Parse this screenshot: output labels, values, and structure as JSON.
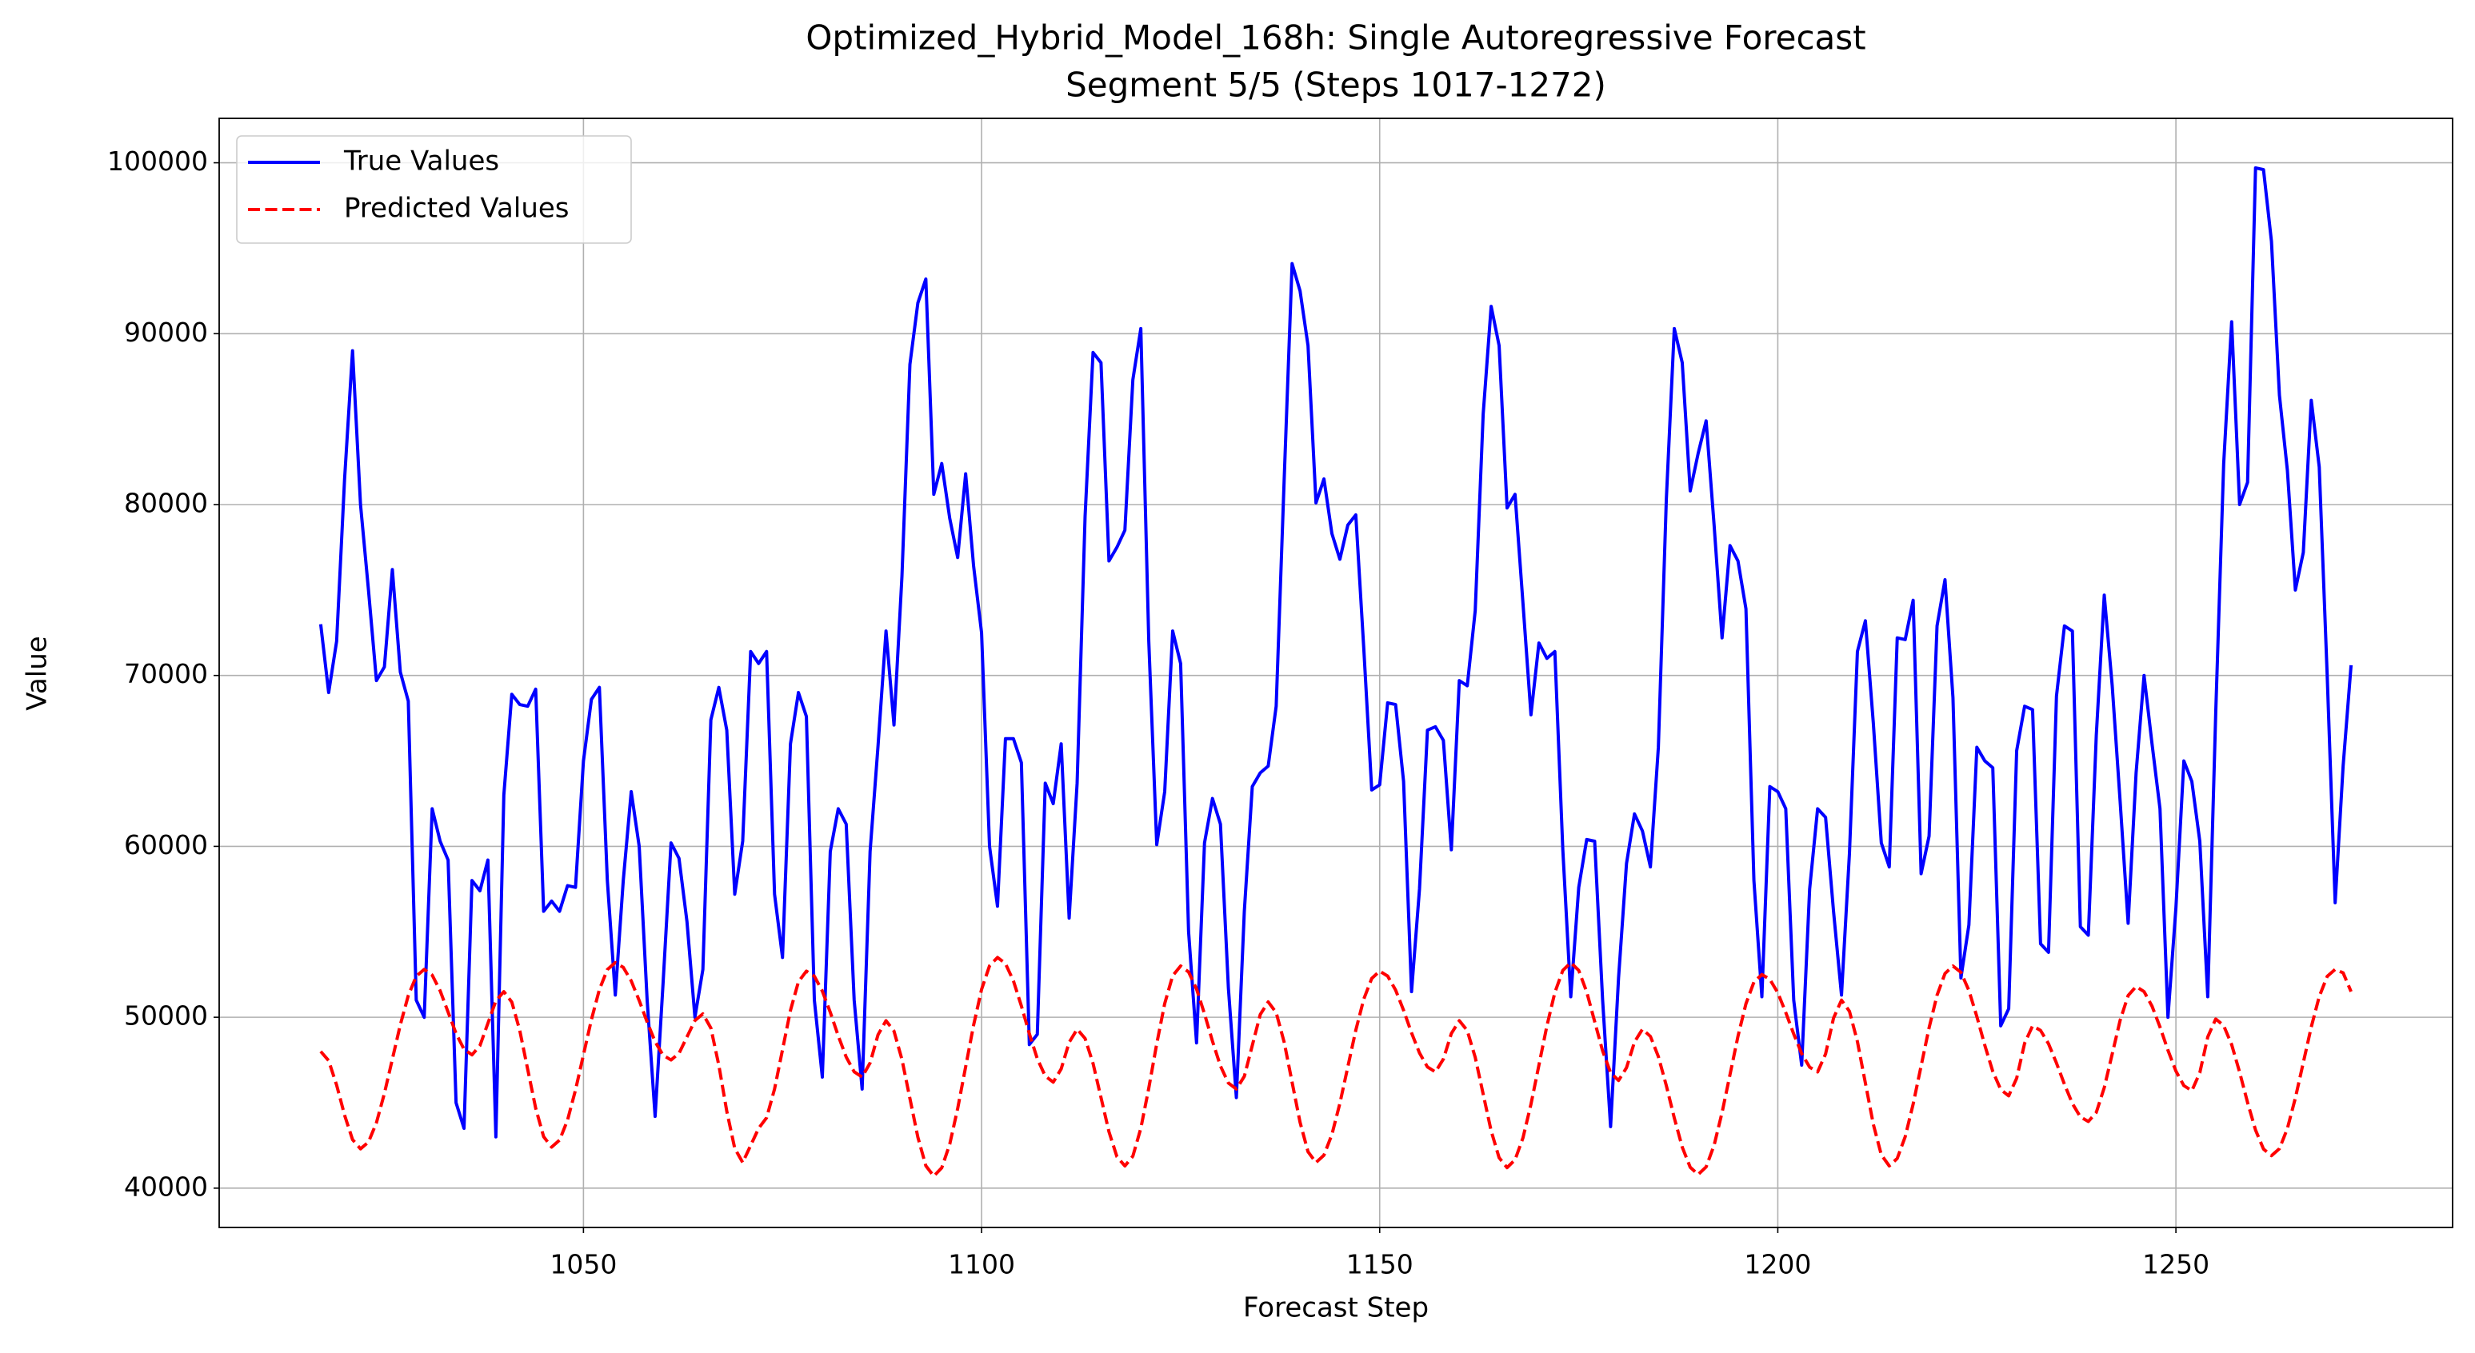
{
  "chart_data": {
    "type": "line",
    "title": "Optimized_Hybrid_Model_168h: Single Autoregressive Forecast",
    "subtitle": "Segment 5/5 (Steps 1017-1272)",
    "xlabel": "Forecast Step",
    "ylabel": "Value",
    "xlim": [
      1004.25,
      1284.75
    ],
    "xticks": [
      1050,
      1100,
      1150,
      1200,
      1250
    ],
    "ylim": [
      37700,
      102600
    ],
    "yticks": [
      40000,
      50000,
      60000,
      70000,
      80000,
      90000,
      100000
    ],
    "grid": true,
    "legend": "upper left",
    "x": [
      1017,
      1018,
      1019,
      1020,
      1021,
      1022,
      1023,
      1024,
      1025,
      1026,
      1027,
      1028,
      1029,
      1030,
      1031,
      1032,
      1033,
      1034,
      1035,
      1036,
      1037,
      1038,
      1039,
      1040,
      1041,
      1042,
      1043,
      1044,
      1045,
      1046,
      1047,
      1048,
      1049,
      1050,
      1051,
      1052,
      1053,
      1054,
      1055,
      1056,
      1057,
      1058,
      1059,
      1060,
      1061,
      1062,
      1063,
      1064,
      1065,
      1066,
      1067,
      1068,
      1069,
      1070,
      1071,
      1072,
      1073,
      1074,
      1075,
      1076,
      1077,
      1078,
      1079,
      1080,
      1081,
      1082,
      1083,
      1084,
      1085,
      1086,
      1087,
      1088,
      1089,
      1090,
      1091,
      1092,
      1093,
      1094,
      1095,
      1096,
      1097,
      1098,
      1099,
      1100,
      1101,
      1102,
      1103,
      1104,
      1105,
      1106,
      1107,
      1108,
      1109,
      1110,
      1111,
      1112,
      1113,
      1114,
      1115,
      1116,
      1117,
      1118,
      1119,
      1120,
      1121,
      1122,
      1123,
      1124,
      1125,
      1126,
      1127,
      1128,
      1129,
      1130,
      1131,
      1132,
      1133,
      1134,
      1135,
      1136,
      1137,
      1138,
      1139,
      1140,
      1141,
      1142,
      1143,
      1144,
      1145,
      1146,
      1147,
      1148,
      1149,
      1150,
      1151,
      1152,
      1153,
      1154,
      1155,
      1156,
      1157,
      1158,
      1159,
      1160,
      1161,
      1162,
      1163,
      1164,
      1165,
      1166,
      1167,
      1168,
      1169,
      1170,
      1171,
      1172,
      1173,
      1174,
      1175,
      1176,
      1177,
      1178,
      1179,
      1180,
      1181,
      1182,
      1183,
      1184,
      1185,
      1186,
      1187,
      1188,
      1189,
      1190,
      1191,
      1192,
      1193,
      1194,
      1195,
      1196,
      1197,
      1198,
      1199,
      1200,
      1201,
      1202,
      1203,
      1204,
      1205,
      1206,
      1207,
      1208,
      1209,
      1210,
      1211,
      1212,
      1213,
      1214,
      1215,
      1216,
      1217,
      1218,
      1219,
      1220,
      1221,
      1222,
      1223,
      1224,
      1225,
      1226,
      1227,
      1228,
      1229,
      1230,
      1231,
      1232,
      1233,
      1234,
      1235,
      1236,
      1237,
      1238,
      1239,
      1240,
      1241,
      1242,
      1243,
      1244,
      1245,
      1246,
      1247,
      1248,
      1249,
      1250,
      1251,
      1252,
      1253,
      1254,
      1255,
      1256,
      1257,
      1258,
      1259,
      1260,
      1261,
      1262,
      1263,
      1264,
      1265,
      1266,
      1267,
      1268,
      1269,
      1270,
      1271,
      1272
    ],
    "series": [
      {
        "name": "True Values",
        "color": "#0000ff",
        "dash": false,
        "values": [
          73000,
          69000,
          72000,
          81500,
          89000,
          80000,
          75000,
          69700,
          70500,
          76200,
          70200,
          68500,
          51000,
          50000,
          62200,
          60300,
          59200,
          45000,
          43500,
          58000,
          57400,
          59200,
          43000,
          63000,
          68900,
          68300,
          68200,
          69200,
          56200,
          56800,
          56200,
          57700,
          57600,
          65000,
          68600,
          69300,
          58000,
          51300,
          58000,
          63200,
          60000,
          51000,
          44200,
          52000,
          60200,
          59300,
          55600,
          50000,
          52800,
          67400,
          69300,
          66800,
          57200,
          60300,
          71400,
          70700,
          71400,
          57200,
          53500,
          66000,
          69000,
          67600,
          51000,
          46500,
          59700,
          62200,
          61300,
          51000,
          45800,
          59700,
          65900,
          72600,
          67100,
          75800,
          88200,
          91800,
          93200,
          80600,
          82400,
          79200,
          76900,
          81800,
          76400,
          72500,
          60000,
          56500,
          66300,
          66300,
          64900,
          48400,
          49000,
          63700,
          62500,
          66000,
          55800,
          63700,
          79300,
          88900,
          88300,
          76700,
          77500,
          78500,
          87300,
          90300,
          72000,
          60100,
          63200,
          72600,
          70700,
          55000,
          48500,
          60200,
          62800,
          61300,
          51700,
          45300,
          56200,
          63500,
          64300,
          64700,
          68200,
          81400,
          94100,
          92500,
          89300,
          80100,
          81500,
          78300,
          76800,
          78800,
          79400,
          71600,
          63300,
          63600,
          68400,
          68300,
          63800,
          51500,
          57500,
          66800,
          67000,
          66200,
          59800,
          69700,
          69400,
          73800,
          85300,
          91600,
          89300,
          79800,
          80600,
          74200,
          67700,
          71900,
          71000,
          71400,
          59800,
          51200,
          57600,
          60400,
          60300,
          51000,
          43600,
          52300,
          59000,
          61900,
          60900,
          58800,
          65800,
          80300,
          90300,
          88300,
          80800,
          83000,
          84900,
          78800,
          72200,
          77600,
          76700,
          73900,
          58000,
          51200,
          63500,
          63200,
          62200,
          51000,
          47200,
          57500,
          62200,
          61700,
          56200,
          51300,
          59600,
          71400,
          73200,
          67200,
          60200,
          58800,
          72200,
          72100,
          74400,
          58400,
          60600,
          72900,
          75600,
          68700,
          52300,
          55400,
          65800,
          65000,
          64600,
          49500,
          50500,
          65600,
          68200,
          68000,
          54300,
          53800,
          68800,
          72900,
          72600,
          55300,
          54800,
          66500,
          74700,
          69400,
          62600,
          55500,
          64300,
          70000,
          66000,
          62200,
          50000,
          56400,
          65000,
          63800,
          60300,
          51200,
          67800,
          82400,
          90700,
          80000,
          81300,
          99700,
          99600,
          95400,
          86400,
          82000,
          75000,
          77200,
          86100,
          82200,
          70000,
          56700,
          64700,
          70600
        ]
      },
      {
        "name": "Predicted Values",
        "color": "#ff0000",
        "dash": true,
        "values": [
          48000,
          47460,
          46030,
          44270,
          42840,
          42300,
          42700,
          43830,
          45540,
          47550,
          49560,
          51270,
          52400,
          52800,
          52470,
          51550,
          50300,
          49050,
          48130,
          47800,
          48340,
          49650,
          50960,
          51500,
          50890,
          49230,
          46950,
          44680,
          43010,
          42400,
          42810,
          43980,
          45740,
          47800,
          49860,
          51620,
          52790,
          53200,
          52920,
          52130,
          50980,
          49720,
          48570,
          47780,
          47500,
          47890,
          48850,
          49810,
          50200,
          49370,
          47200,
          44500,
          42330,
          41500,
          42500,
          43500,
          44120,
          45800,
          48100,
          50400,
          52080,
          52700,
          52400,
          51530,
          50290,
          48910,
          47670,
          46810,
          46500,
          47330,
          48980,
          49800,
          49190,
          47530,
          45250,
          42980,
          41310,
          40700,
          41190,
          42570,
          44660,
          47100,
          49540,
          51630,
          53010,
          53500,
          53140,
          52130,
          50660,
          49040,
          47570,
          46560,
          46200,
          46980,
          48530,
          49300,
          48760,
          47300,
          45300,
          43300,
          41840,
          41300,
          41870,
          43500,
          45850,
          48450,
          50800,
          52430,
          53000,
          52650,
          51650,
          50200,
          48600,
          47150,
          46150,
          45800,
          46540,
          48350,
          50160,
          50900,
          50270,
          48550,
          46200,
          43850,
          42130,
          41500,
          41930,
          43140,
          44960,
          47100,
          49240,
          51060,
          52270,
          52700,
          52410,
          51590,
          50410,
          49090,
          47910,
          47090,
          46800,
          47550,
          49050,
          49800,
          49220,
          47650,
          45500,
          43350,
          41780,
          41200,
          41660,
          42950,
          44910,
          47200,
          49490,
          51450,
          52740,
          53200,
          52740,
          51480,
          49750,
          48030,
          46760,
          46300,
          47050,
          48550,
          49300,
          48880,
          47700,
          46000,
          44110,
          42400,
          41220,
          40800,
          41240,
          42510,
          44420,
          46650,
          48890,
          50790,
          52060,
          52500,
          52220,
          51430,
          50280,
          49020,
          47870,
          47080,
          46800,
          47850,
          49950,
          51000,
          50350,
          48580,
          46150,
          43730,
          41950,
          41300,
          41740,
          43010,
          44920,
          47150,
          49380,
          51290,
          52560,
          53000,
          52630,
          51570,
          50040,
          48360,
          46830,
          45770,
          45400,
          46430,
          48480,
          49500,
          49230,
          48450,
          47320,
          46080,
          44950,
          44170,
          43900,
          44430,
          45880,
          47850,
          49830,
          51270,
          51800,
          51500,
          50650,
          49430,
          48070,
          46850,
          46000,
          45700,
          46750,
          48850,
          49900,
          49510,
          48400,
          46790,
          45010,
          43400,
          42290,
          41900,
          42310,
          43490,
          45270,
          47350,
          49430,
          51210,
          52390,
          52800,
          52600,
          51500
        ]
      }
    ]
  }
}
